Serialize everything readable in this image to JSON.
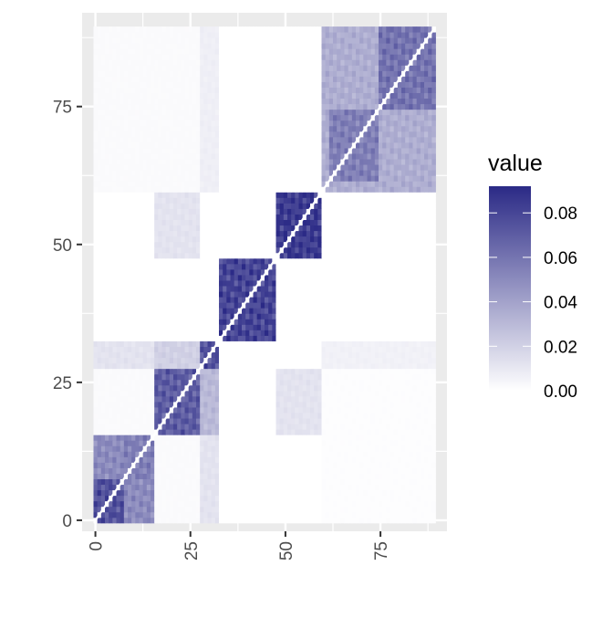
{
  "chart_data": {
    "type": "heatmap",
    "title": "",
    "xlabel": "",
    "ylabel": "",
    "matrix_size": 90,
    "xlim": [
      -3.5,
      92.5
    ],
    "ylim": [
      -2,
      92
    ],
    "x_ticks": [
      0,
      25,
      50,
      75
    ],
    "y_ticks": [
      0,
      25,
      50,
      75
    ],
    "x_tick_labels": [
      "0",
      "25",
      "50",
      "75"
    ],
    "y_tick_labels": [
      "0",
      "25",
      "50",
      "75"
    ],
    "diagonal": "white (excluded)",
    "legend": {
      "title": "value",
      "position": "right",
      "min": 0,
      "max": 0.092,
      "ticks": [
        0.0,
        0.02,
        0.04,
        0.06,
        0.08
      ],
      "tick_labels": [
        "0.00",
        "0.02",
        "0.04",
        "0.06",
        "0.08"
      ],
      "low_color": "#ffffff",
      "high_color": "#2b2a86"
    },
    "blocks": [
      {
        "rows": [
          0,
          8
        ],
        "cols": [
          0,
          8
        ],
        "value": 0.075
      },
      {
        "rows": [
          8,
          16
        ],
        "cols": [
          8,
          16
        ],
        "value": 0.055
      },
      {
        "rows": [
          0,
          8
        ],
        "cols": [
          8,
          16
        ],
        "value": 0.05
      },
      {
        "rows": [
          8,
          16
        ],
        "cols": [
          0,
          8
        ],
        "value": 0.05
      },
      {
        "rows": [
          0,
          16
        ],
        "cols": [
          16,
          28
        ],
        "value": 0.002
      },
      {
        "rows": [
          16,
          28
        ],
        "cols": [
          0,
          16
        ],
        "value": 0.002
      },
      {
        "rows": [
          0,
          16
        ],
        "cols": [
          28,
          33
        ],
        "value": 0.012
      },
      {
        "rows": [
          28,
          33
        ],
        "cols": [
          0,
          16
        ],
        "value": 0.012
      },
      {
        "rows": [
          16,
          28
        ],
        "cols": [
          16,
          28
        ],
        "value": 0.07
      },
      {
        "rows": [
          16,
          28
        ],
        "cols": [
          28,
          33
        ],
        "value": 0.03
      },
      {
        "rows": [
          28,
          33
        ],
        "cols": [
          16,
          28
        ],
        "value": 0.02
      },
      {
        "rows": [
          28,
          33
        ],
        "cols": [
          28,
          33
        ],
        "value": 0.075
      },
      {
        "rows": [
          33,
          48
        ],
        "cols": [
          33,
          48
        ],
        "value": 0.08
      },
      {
        "rows": [
          48,
          60
        ],
        "cols": [
          48,
          60
        ],
        "value": 0.085
      },
      {
        "rows": [
          16,
          28
        ],
        "cols": [
          48,
          60
        ],
        "value": 0.012
      },
      {
        "rows": [
          48,
          60
        ],
        "cols": [
          16,
          28
        ],
        "value": 0.012
      },
      {
        "rows": [
          60,
          90
        ],
        "cols": [
          60,
          90
        ],
        "value": 0.035
      },
      {
        "rows": [
          62,
          75
        ],
        "cols": [
          62,
          75
        ],
        "value": 0.055
      },
      {
        "rows": [
          75,
          90
        ],
        "cols": [
          75,
          90
        ],
        "value": 0.06
      },
      {
        "rows": [
          60,
          90
        ],
        "cols": [
          28,
          33
        ],
        "value": 0.007
      },
      {
        "rows": [
          28,
          33
        ],
        "cols": [
          60,
          90
        ],
        "value": 0.006
      },
      {
        "rows": [
          60,
          90
        ],
        "cols": [
          0,
          28
        ],
        "value": 0.002
      },
      {
        "rows": [
          0,
          28
        ],
        "cols": [
          60,
          90
        ],
        "value": 0.001
      }
    ]
  }
}
